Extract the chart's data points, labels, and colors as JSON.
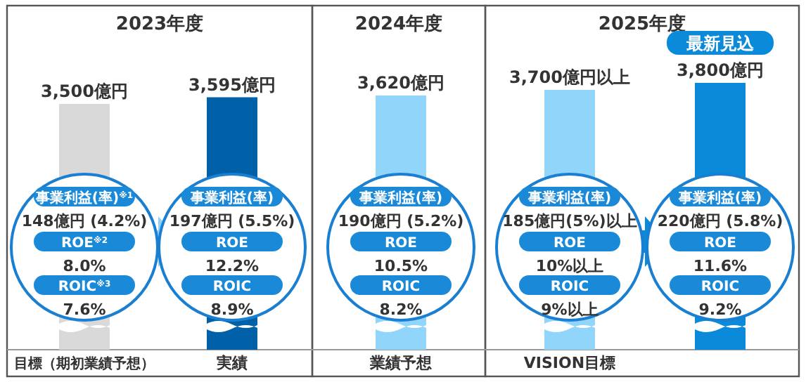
{
  "chart_data": {
    "type": "bar",
    "categories": [
      "目標（期初業績予想）",
      "実績",
      "業績予想",
      "VISION目標",
      null
    ],
    "values": [
      3500,
      3595,
      3620,
      3700,
      3800
    ],
    "colors": [
      "#d9d9d9",
      "#0061a8",
      "#92d5fb",
      "#92d5fb",
      "#0a8ad8"
    ],
    "value_labels": [
      "3,500億円",
      "3,595億円",
      "3,620億円",
      "3,700億円以上",
      "3,800億円"
    ],
    "annotations": [
      "2023年度",
      "2024年度",
      "2025年度",
      "最新見込",
      "事業利益(率)$^{※1}$",
      "148億円 (4.2%)",
      "ROE$^{※2}$",
      "8.0%",
      "ROIC$^{※3}$",
      "7.6%",
      "事業利益(率)",
      "197億円 (5.5%)",
      "ROE",
      "12.2%",
      "ROIC",
      "8.9%",
      "事業利益(率)",
      "190億円 (5.2%)",
      "ROE",
      "10.5%",
      "ROIC",
      "8.2%",
      "事業利益(率)",
      "185億円(5%)以上",
      "ROE",
      "10%以上",
      "ROIC",
      "9%以上",
      "事業利益(率)",
      "220億円 (5.8%)",
      "ROE",
      "11.6%",
      "ROIC",
      "9.2%"
    ]
  }
}
